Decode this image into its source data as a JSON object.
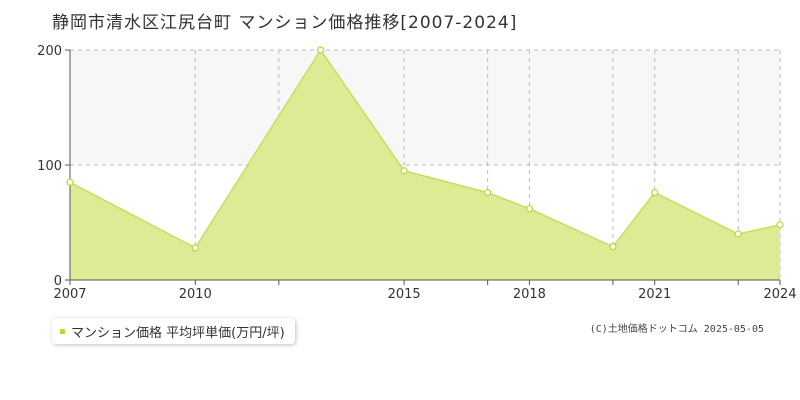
{
  "title": "静岡市清水区江尻台町 マンション価格推移[2007-2024]",
  "legend_label": "マンション価格 平均坪単価(万円/坪)",
  "credit": "(C)土地価格ドットコム 2025-05-05",
  "colors": {
    "fill": "#dcec94",
    "line": "#c2e060",
    "marker": "#b5d935",
    "grid": "#bbbbbb",
    "band": "#f7f7f7"
  },
  "chart_data": {
    "type": "area",
    "x": [
      2007,
      2010,
      2013,
      2015,
      2017,
      2018,
      2020,
      2021,
      2023,
      2024
    ],
    "series": [
      {
        "name": "マンション価格 平均坪単価(万円/坪)",
        "values": [
          85,
          28,
          200,
          95,
          76,
          62,
          29,
          76,
          40,
          48
        ]
      }
    ],
    "xlim": [
      2007,
      2024
    ],
    "ylim": [
      0,
      200
    ],
    "x_ticks": [
      2007,
      2010,
      2015,
      2018,
      2021,
      2024
    ],
    "x_gridlines": [
      2007,
      2010,
      2012,
      2015,
      2017,
      2018,
      2020,
      2021,
      2023,
      2024
    ],
    "y_ticks": [
      0,
      100,
      200
    ],
    "grid": true,
    "legend_position": "bottom-left"
  }
}
